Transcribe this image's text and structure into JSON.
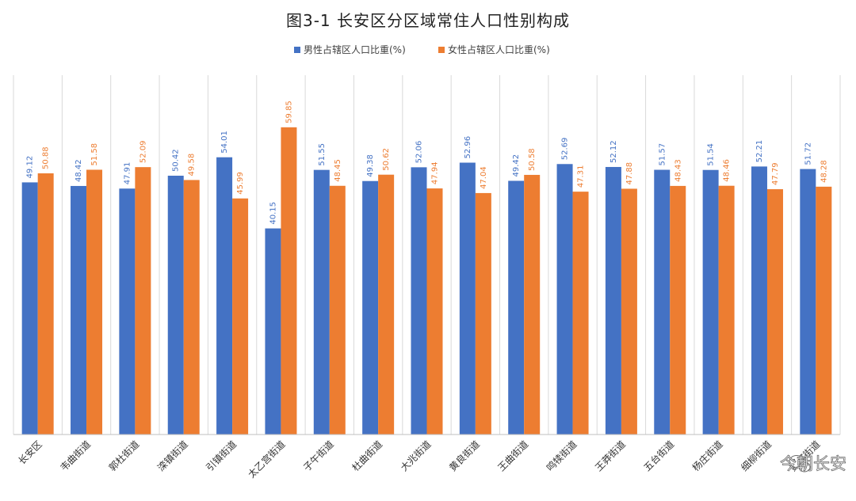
{
  "chart_data": {
    "type": "bar",
    "title": "图3-1  长安区分区域常住人口性别构成",
    "categories": [
      "长安区",
      "韦曲街道",
      "郭杜街道",
      "滦镇街道",
      "引镇街道",
      "太乙宫街道",
      "子午街道",
      "杜曲街道",
      "大兆街道",
      "黄良街道",
      "王曲街道",
      "鸣犊街道",
      "王莽街道",
      "五台街道",
      "杨庄街道",
      "细柳街道",
      "魏寨街道"
    ],
    "series": [
      {
        "name": "男性占辖区人口比重(%)",
        "color": "#4472C4",
        "values": [
          49.12,
          48.42,
          47.91,
          50.42,
          54.01,
          40.15,
          51.55,
          49.38,
          52.06,
          52.96,
          49.42,
          52.69,
          52.12,
          51.57,
          51.54,
          52.21,
          51.72
        ]
      },
      {
        "name": "女性占辖区人口比重(%)",
        "color": "#ED7D31",
        "values": [
          50.88,
          51.58,
          52.09,
          49.58,
          45.99,
          59.85,
          48.45,
          50.62,
          47.94,
          47.04,
          50.58,
          47.31,
          47.88,
          48.43,
          48.46,
          47.79,
          48.28
        ]
      }
    ],
    "xlabel": "",
    "ylabel": "",
    "ylim": [
      0,
      70
    ],
    "legend": "top-center",
    "grid": "vertical"
  },
  "watermark": {
    "icon": "wechat-icon",
    "text": "今朝长安"
  }
}
